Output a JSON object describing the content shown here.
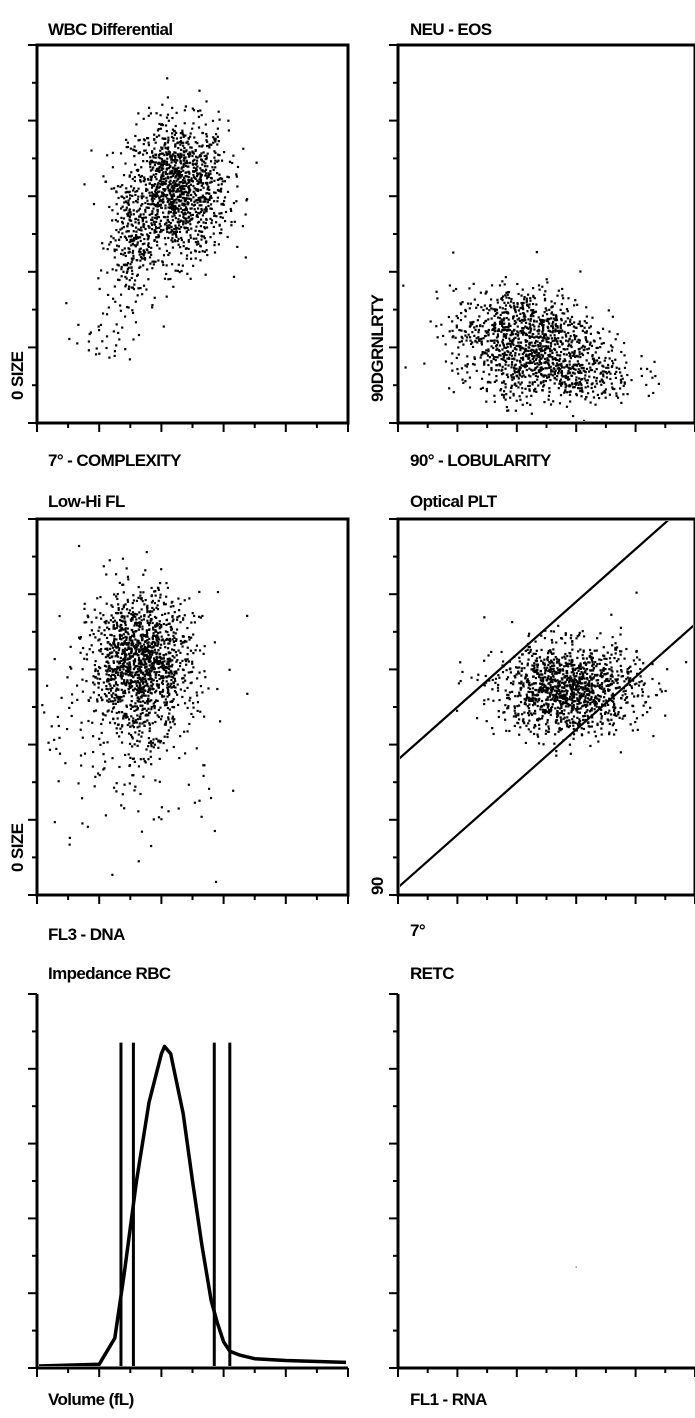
{
  "panels": [
    {
      "title": "WBC Differential",
      "xlabel": "7° - COMPLEXITY",
      "ylabel": "0 SIZE",
      "type": "scatter"
    },
    {
      "title": "NEU - EOS",
      "xlabel": "90° - LOBULARITY",
      "ylabel": "90DGRNLRTY",
      "type": "scatter"
    },
    {
      "title": "Low-Hi FL",
      "xlabel": "FL3 - DNA",
      "ylabel": "0 SIZE",
      "type": "scatter"
    },
    {
      "title": "Optical PLT",
      "xlabel": "7°",
      "ylabel": "90",
      "type": "scatter"
    },
    {
      "title": "Impedance RBC",
      "xlabel": "Volume (fL)",
      "ylabel": "",
      "type": "line"
    },
    {
      "title": "RETC",
      "xlabel": "FL1 - RNA",
      "ylabel": "",
      "type": "scatter"
    }
  ],
  "chart_data": [
    {
      "type": "scatter",
      "title": "WBC Differential",
      "xlabel": "7° - COMPLEXITY",
      "ylabel": "0 SIZE",
      "xlim": [
        0,
        1
      ],
      "ylim": [
        0,
        1
      ],
      "clusters": [
        {
          "center": [
            0.45,
            0.62
          ],
          "spread": [
            0.08,
            0.09
          ],
          "count": 1300
        },
        {
          "center": [
            0.3,
            0.48
          ],
          "spread": [
            0.04,
            0.08
          ],
          "count": 250
        },
        {
          "center": [
            0.22,
            0.24
          ],
          "spread": [
            0.05,
            0.05
          ],
          "count": 40
        }
      ],
      "grid": false
    },
    {
      "type": "scatter",
      "title": "NEU - EOS",
      "xlabel": "90° - LOBULARITY",
      "ylabel": "90DGRNLRTY",
      "xlim": [
        0,
        1
      ],
      "ylim": [
        0,
        1
      ],
      "clusters": [
        {
          "center": [
            0.42,
            0.24
          ],
          "spread": [
            0.12,
            0.06
          ],
          "count": 900
        },
        {
          "center": [
            0.54,
            0.13
          ],
          "spread": [
            0.13,
            0.04
          ],
          "count": 500
        }
      ],
      "grid": false
    },
    {
      "type": "scatter",
      "title": "Low-Hi FL",
      "xlabel": "FL3 - DNA",
      "ylabel": "0 SIZE",
      "xlim": [
        0,
        1
      ],
      "ylim": [
        0,
        1
      ],
      "clusters": [
        {
          "center": [
            0.33,
            0.62
          ],
          "spread": [
            0.08,
            0.09
          ],
          "count": 1400
        },
        {
          "center": [
            0.3,
            0.45
          ],
          "spread": [
            0.15,
            0.17
          ],
          "count": 220
        }
      ],
      "grid": false
    },
    {
      "type": "scatter",
      "title": "Optical PLT",
      "xlabel": "7°",
      "ylabel": "90",
      "xlim": [
        0,
        1
      ],
      "ylim": [
        0,
        1
      ],
      "clusters": [
        {
          "center": [
            0.57,
            0.55
          ],
          "spread": [
            0.12,
            0.06
          ],
          "count": 1300
        }
      ],
      "gate_lines": [
        {
          "from": [
            0.0,
            0.36
          ],
          "to": [
            1.0,
            1.06
          ]
        },
        {
          "from": [
            0.0,
            0.02
          ],
          "to": [
            1.0,
            0.72
          ]
        }
      ],
      "grid": false
    },
    {
      "type": "line",
      "title": "Impedance RBC",
      "xlabel": "Volume (fL)",
      "ylabel": "",
      "xlim": [
        0,
        1
      ],
      "ylim": [
        0,
        1
      ],
      "series": [
        {
          "x": [
            0.0,
            0.2,
            0.25,
            0.28,
            0.32,
            0.36,
            0.4,
            0.41,
            0.42,
            0.43,
            0.44,
            0.47,
            0.5,
            0.53,
            0.56,
            0.58,
            0.6,
            0.62,
            0.65,
            0.7,
            0.8,
            1.0
          ],
          "y": [
            0.005,
            0.01,
            0.08,
            0.25,
            0.5,
            0.71,
            0.84,
            0.86,
            0.85,
            0.84,
            0.8,
            0.68,
            0.5,
            0.33,
            0.18,
            0.12,
            0.07,
            0.045,
            0.035,
            0.025,
            0.02,
            0.015
          ]
        }
      ],
      "marker_lines_x": [
        0.27,
        0.31,
        0.57,
        0.62
      ],
      "marker_lines_top": 0.87,
      "grid": false
    },
    {
      "type": "scatter",
      "title": "RETC",
      "xlabel": "FL1 - RNA",
      "ylabel": "",
      "xlim": [
        0,
        1
      ],
      "ylim": [
        0,
        1
      ],
      "points": [
        [
          0.6,
          0.27
        ]
      ],
      "grid": false
    }
  ]
}
